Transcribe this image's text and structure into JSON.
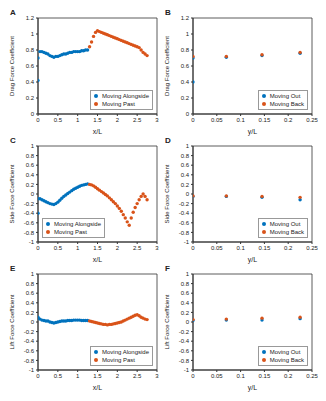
{
  "chart_data": [
    {
      "type": "scatter",
      "title": "A",
      "x_label": "x/L",
      "y_label": "Drag Force Coefficient",
      "xlim": [
        0,
        3
      ],
      "xticks": [
        0,
        0.5,
        1,
        1.5,
        2,
        2.5,
        3
      ],
      "ylim": [
        0,
        1.2
      ],
      "yticks": [
        0,
        0.2,
        0.4,
        0.6,
        0.8,
        1,
        1.2
      ],
      "grid": false,
      "legend": "lower right",
      "series": [
        {
          "name": "Moving Alongside",
          "color": "#0072BD",
          "marker": "circle",
          "x": [
            0,
            0,
            0.05,
            0.1,
            0.15,
            0.2,
            0.25,
            0.3,
            0.35,
            0.4,
            0.45,
            0.5,
            0.55,
            0.6,
            0.65,
            0.7,
            0.75,
            0.8,
            0.85,
            0.9,
            0.95,
            1.0,
            1.05,
            1.1,
            1.15,
            1.2,
            1.25
          ],
          "values": [
            0.42,
            0.7,
            0.78,
            0.78,
            0.77,
            0.76,
            0.75,
            0.73,
            0.72,
            0.71,
            0.72,
            0.72,
            0.73,
            0.74,
            0.75,
            0.75,
            0.76,
            0.77,
            0.77,
            0.78,
            0.78,
            0.78,
            0.78,
            0.79,
            0.79,
            0.8,
            0.8
          ]
        },
        {
          "name": "Moving Past",
          "color": "#D95319",
          "marker": "circle",
          "x": [
            1.3,
            1.35,
            1.4,
            1.45,
            1.5,
            1.55,
            1.6,
            1.65,
            1.7,
            1.75,
            1.8,
            1.85,
            1.9,
            1.95,
            2.0,
            2.05,
            2.1,
            2.15,
            2.2,
            2.25,
            2.3,
            2.35,
            2.4,
            2.45,
            2.5,
            2.55,
            2.6,
            2.65,
            2.7,
            2.75
          ],
          "values": [
            0.84,
            0.9,
            0.97,
            1.02,
            1.04,
            1.03,
            1.02,
            1.01,
            1.0,
            0.99,
            0.98,
            0.97,
            0.96,
            0.95,
            0.94,
            0.93,
            0.92,
            0.91,
            0.9,
            0.89,
            0.88,
            0.87,
            0.86,
            0.85,
            0.84,
            0.83,
            0.8,
            0.77,
            0.75,
            0.73
          ]
        }
      ]
    },
    {
      "type": "scatter",
      "title": "B",
      "x_label": "y/L",
      "y_label": "Drag Force Coefficient",
      "xlim": [
        0,
        0.25
      ],
      "xticks": [
        0,
        0.05,
        0.1,
        0.15,
        0.2,
        0.25
      ],
      "ylim": [
        0,
        1.2
      ],
      "yticks": [
        0,
        0.2,
        0.4,
        0.6,
        0.8,
        1,
        1.2
      ],
      "grid": false,
      "legend": "lower right",
      "series": [
        {
          "name": "Moving Out",
          "color": "#0072BD",
          "marker": "circle",
          "x": [
            0,
            0,
            0.07,
            0.145,
            0.225
          ],
          "values": [
            0.4,
            0.7,
            0.71,
            0.73,
            0.76
          ]
        },
        {
          "name": "Moving Back",
          "color": "#D95319",
          "marker": "circle",
          "x": [
            0,
            0.07,
            0.145,
            0.225
          ],
          "values": [
            0.72,
            0.72,
            0.74,
            0.77
          ]
        }
      ]
    },
    {
      "type": "scatter",
      "title": "C",
      "x_label": "x/L",
      "y_label": "Side Force Coefficient",
      "xlim": [
        0,
        3
      ],
      "xticks": [
        0,
        0.5,
        1,
        1.5,
        2,
        2.5,
        3
      ],
      "ylim": [
        -1,
        1
      ],
      "yticks": [
        -1,
        -0.8,
        -0.6,
        -0.4,
        -0.2,
        0,
        0.2,
        0.4,
        0.6,
        0.8,
        1
      ],
      "grid": false,
      "legend": "lower left",
      "series": [
        {
          "name": "Moving Alongside",
          "color": "#0072BD",
          "marker": "circle",
          "x": [
            0,
            0,
            0.05,
            0.1,
            0.15,
            0.2,
            0.25,
            0.3,
            0.35,
            0.4,
            0.45,
            0.5,
            0.55,
            0.6,
            0.65,
            0.7,
            0.75,
            0.8,
            0.85,
            0.9,
            0.95,
            1.0,
            1.05,
            1.1,
            1.15,
            1.2,
            1.25
          ],
          "values": [
            -0.4,
            -0.1,
            -0.1,
            -0.12,
            -0.14,
            -0.16,
            -0.18,
            -0.2,
            -0.21,
            -0.22,
            -0.2,
            -0.17,
            -0.13,
            -0.09,
            -0.05,
            -0.02,
            0.01,
            0.04,
            0.07,
            0.1,
            0.12,
            0.14,
            0.16,
            0.18,
            0.19,
            0.2,
            0.21
          ]
        },
        {
          "name": "Moving Past",
          "color": "#D95319",
          "marker": "circle",
          "x": [
            1.3,
            1.35,
            1.4,
            1.45,
            1.5,
            1.55,
            1.6,
            1.65,
            1.7,
            1.75,
            1.8,
            1.85,
            1.9,
            1.95,
            2.0,
            2.05,
            2.1,
            2.15,
            2.2,
            2.25,
            2.3,
            2.35,
            2.4,
            2.45,
            2.5,
            2.55,
            2.6,
            2.65,
            2.7,
            2.75
          ],
          "values": [
            0.2,
            0.19,
            0.17,
            0.14,
            0.11,
            0.08,
            0.05,
            0.02,
            -0.01,
            -0.04,
            -0.08,
            -0.12,
            -0.16,
            -0.2,
            -0.25,
            -0.3,
            -0.36,
            -0.43,
            -0.5,
            -0.58,
            -0.65,
            -0.5,
            -0.38,
            -0.28,
            -0.2,
            -0.12,
            -0.05,
            0.0,
            -0.05,
            -0.12
          ]
        }
      ]
    },
    {
      "type": "scatter",
      "title": "D",
      "x_label": "y/L",
      "y_label": "Side Force Coefficient",
      "xlim": [
        0,
        0.25
      ],
      "xticks": [
        0,
        0.05,
        0.1,
        0.15,
        0.2,
        0.25
      ],
      "ylim": [
        -1,
        1
      ],
      "yticks": [
        -1,
        -0.8,
        -0.6,
        -0.4,
        -0.2,
        0,
        0.2,
        0.4,
        0.6,
        0.8,
        1
      ],
      "grid": false,
      "legend": "lower right",
      "series": [
        {
          "name": "Moving Out",
          "color": "#0072BD",
          "marker": "circle",
          "x": [
            0,
            0.07,
            0.145,
            0.225
          ],
          "values": [
            -0.05,
            -0.05,
            -0.07,
            -0.12
          ]
        },
        {
          "name": "Moving Back",
          "color": "#D95319",
          "marker": "circle",
          "x": [
            0,
            0.07,
            0.145,
            0.225
          ],
          "values": [
            -0.04,
            -0.04,
            -0.05,
            -0.07
          ]
        }
      ]
    },
    {
      "type": "scatter",
      "title": "E",
      "x_label": "x/L",
      "y_label": "Lift Force Coefficient",
      "xlim": [
        0,
        3
      ],
      "xticks": [
        0,
        0.5,
        1,
        1.5,
        2,
        2.5,
        3
      ],
      "ylim": [
        -1,
        1
      ],
      "yticks": [
        -1,
        -0.8,
        -0.6,
        -0.4,
        -0.2,
        0,
        0.2,
        0.4,
        0.6,
        0.8,
        1
      ],
      "grid": false,
      "legend": "lower right",
      "series": [
        {
          "name": "Moving Alongside",
          "color": "#0072BD",
          "marker": "circle",
          "x": [
            0,
            0,
            0.05,
            0.1,
            0.15,
            0.2,
            0.25,
            0.3,
            0.35,
            0.4,
            0.45,
            0.5,
            0.55,
            0.6,
            0.65,
            0.7,
            0.75,
            0.8,
            0.85,
            0.9,
            0.95,
            1.0,
            1.05,
            1.1,
            1.15,
            1.2,
            1.25
          ],
          "values": [
            0.08,
            0.1,
            0.06,
            0.04,
            0.03,
            0.02,
            0.02,
            0.0,
            -0.01,
            -0.02,
            -0.01,
            0,
            0.01,
            0.02,
            0.02,
            0.02,
            0.03,
            0.03,
            0.03,
            0.04,
            0.04,
            0.04,
            0.04,
            0.03,
            0.03,
            0.03,
            0.03
          ]
        },
        {
          "name": "Moving Past",
          "color": "#D95319",
          "marker": "circle",
          "x": [
            1.3,
            1.35,
            1.4,
            1.45,
            1.5,
            1.55,
            1.6,
            1.65,
            1.7,
            1.75,
            1.8,
            1.85,
            1.9,
            1.95,
            2.0,
            2.05,
            2.1,
            2.15,
            2.2,
            2.25,
            2.3,
            2.35,
            2.4,
            2.45,
            2.5,
            2.55,
            2.6,
            2.65,
            2.7,
            2.75
          ],
          "values": [
            0.02,
            0.01,
            0,
            -0.01,
            -0.02,
            -0.03,
            -0.04,
            -0.05,
            -0.05,
            -0.06,
            -0.05,
            -0.05,
            -0.04,
            -0.03,
            -0.02,
            -0.01,
            0,
            0.02,
            0.04,
            0.06,
            0.08,
            0.1,
            0.12,
            0.14,
            0.15,
            0.13,
            0.1,
            0.08,
            0.06,
            0.05
          ]
        }
      ]
    },
    {
      "type": "scatter",
      "title": "F",
      "x_label": "y/L",
      "y_label": "Lift Force Coefficient",
      "xlim": [
        0,
        0.25
      ],
      "xticks": [
        0,
        0.05,
        0.1,
        0.15,
        0.2,
        0.25
      ],
      "ylim": [
        -1,
        1
      ],
      "yticks": [
        -1,
        -0.8,
        -0.6,
        -0.4,
        -0.2,
        0,
        0.2,
        0.4,
        0.6,
        0.8,
        1
      ],
      "grid": false,
      "legend": "lower right",
      "series": [
        {
          "name": "Moving Out",
          "color": "#0072BD",
          "marker": "circle",
          "x": [
            0,
            0.07,
            0.145,
            0.225
          ],
          "values": [
            0.03,
            0.04,
            0.04,
            0.07
          ]
        },
        {
          "name": "Moving Back",
          "color": "#D95319",
          "marker": "circle",
          "x": [
            0,
            0.07,
            0.145,
            0.225
          ],
          "values": [
            0.05,
            0.06,
            0.08,
            0.1
          ]
        }
      ]
    }
  ]
}
